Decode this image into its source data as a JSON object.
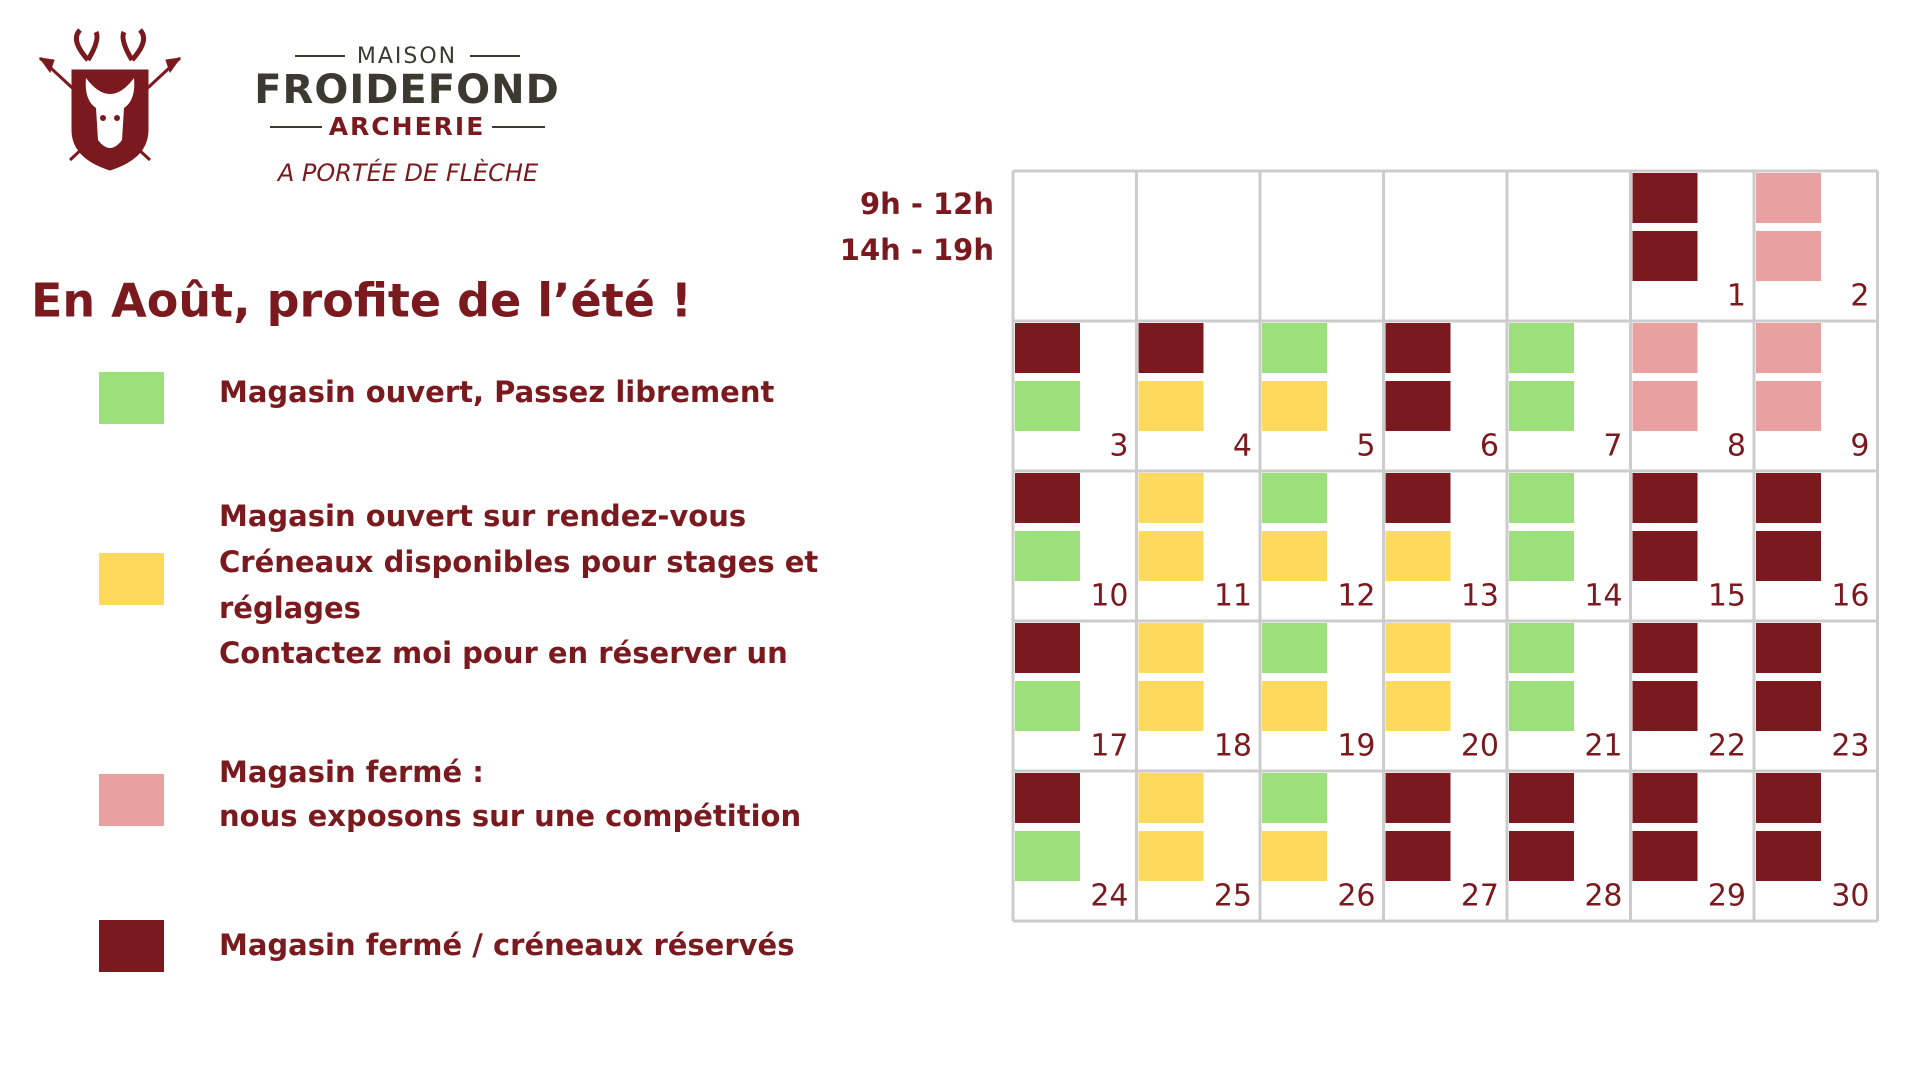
{
  "header": {
    "brand_top": "MAISON",
    "brand_name": "FROIDEFOND",
    "brand_sub": "ARCHERIE",
    "tagline": "A PORTÉE DE FLÈCHE"
  },
  "title": "En Août, profite de l’été !",
  "legend": [
    {
      "color": "#9be07a",
      "lines": [
        "Magasin ouvert, Passez librement"
      ]
    },
    {
      "color": "#fdd95c",
      "lines": [
        "Magasin ouvert sur rendez-vous",
        "Créneaux disponibles pour stages et",
        "réglages",
        "Contactez moi pour en réserver un"
      ]
    },
    {
      "color": "#e8a0a0",
      "lines": [
        "Magasin fermé :",
        "nous exposons sur une compétition"
      ]
    },
    {
      "color": "#7a1a1e",
      "lines": [
        "Magasin fermé / créneaux réservés"
      ]
    }
  ],
  "schedule": {
    "slots": [
      "9h - 12h",
      "14h - 19h"
    ],
    "weeks": [
      [
        null,
        null,
        null,
        null,
        null,
        {
          "day": 1,
          "am": "#7a1a1e",
          "pm": "#7a1a1e"
        },
        {
          "day": 2,
          "am": "#e8a0a0",
          "pm": "#e8a0a0"
        }
      ],
      [
        {
          "day": 3,
          "am": "#7a1a1e",
          "pm": "#9be07a"
        },
        {
          "day": 4,
          "am": "#7a1a1e",
          "pm": "#fdd95c"
        },
        {
          "day": 5,
          "am": "#9be07a",
          "pm": "#fdd95c"
        },
        {
          "day": 6,
          "am": "#7a1a1e",
          "pm": "#7a1a1e"
        },
        {
          "day": 7,
          "am": "#9be07a",
          "pm": "#9be07a"
        },
        {
          "day": 8,
          "am": "#e8a0a0",
          "pm": "#e8a0a0"
        },
        {
          "day": 9,
          "am": "#e8a0a0",
          "pm": "#e8a0a0"
        }
      ],
      [
        {
          "day": 10,
          "am": "#7a1a1e",
          "pm": "#9be07a"
        },
        {
          "day": 11,
          "am": "#fdd95c",
          "pm": "#fdd95c"
        },
        {
          "day": 12,
          "am": "#9be07a",
          "pm": "#fdd95c"
        },
        {
          "day": 13,
          "am": "#7a1a1e",
          "pm": "#fdd95c"
        },
        {
          "day": 14,
          "am": "#9be07a",
          "pm": "#9be07a"
        },
        {
          "day": 15,
          "am": "#7a1a1e",
          "pm": "#7a1a1e"
        },
        {
          "day": 16,
          "am": "#7a1a1e",
          "pm": "#7a1a1e"
        }
      ],
      [
        {
          "day": 17,
          "am": "#7a1a1e",
          "pm": "#9be07a"
        },
        {
          "day": 18,
          "am": "#fdd95c",
          "pm": "#fdd95c"
        },
        {
          "day": 19,
          "am": "#9be07a",
          "pm": "#fdd95c"
        },
        {
          "day": 20,
          "am": "#fdd95c",
          "pm": "#fdd95c"
        },
        {
          "day": 21,
          "am": "#9be07a",
          "pm": "#9be07a"
        },
        {
          "day": 22,
          "am": "#7a1a1e",
          "pm": "#7a1a1e"
        },
        {
          "day": 23,
          "am": "#7a1a1e",
          "pm": "#7a1a1e"
        }
      ],
      [
        {
          "day": 24,
          "am": "#7a1a1e",
          "pm": "#9be07a"
        },
        {
          "day": 25,
          "am": "#fdd95c",
          "pm": "#fdd95c"
        },
        {
          "day": 26,
          "am": "#9be07a",
          "pm": "#fdd95c"
        },
        {
          "day": 27,
          "am": "#7a1a1e",
          "pm": "#7a1a1e"
        },
        {
          "day": 28,
          "am": "#7a1a1e",
          "pm": "#7a1a1e"
        },
        {
          "day": 29,
          "am": "#7a1a1e",
          "pm": "#7a1a1e"
        },
        {
          "day": 30,
          "am": "#7a1a1e",
          "pm": "#7a1a1e"
        }
      ]
    ]
  }
}
